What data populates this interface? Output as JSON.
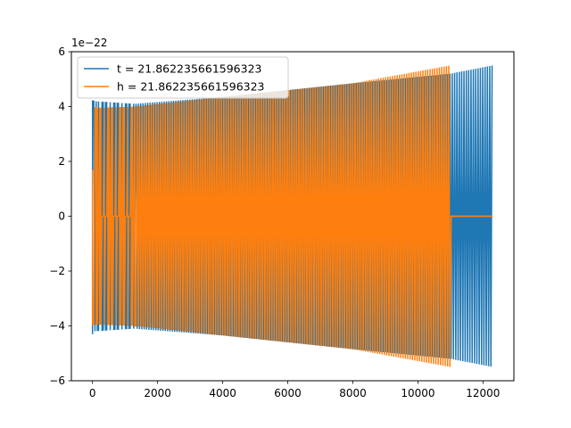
{
  "chart_data": {
    "type": "line",
    "x_ticks": [
      0,
      2000,
      4000,
      6000,
      8000,
      10000,
      12000
    ],
    "y_ticks": [
      -6,
      -4,
      -2,
      0,
      2,
      4,
      6
    ],
    "y_offset_text": "1e−22",
    "xlim": [
      -650,
      12950
    ],
    "ylim": [
      -6,
      6
    ],
    "grid": false,
    "legend_position": "top-left",
    "series": [
      {
        "name": "t = 21.862235661596323",
        "color": "#1f77b4",
        "x_range": [
          0,
          12300
        ],
        "envelope": [
          [
            0,
            4.2
          ],
          [
            1300,
            4.1
          ],
          [
            4000,
            4.35
          ],
          [
            8000,
            4.85
          ],
          [
            11000,
            5.2
          ],
          [
            12300,
            5.5
          ]
        ],
        "quiet_segments": [
          [
            150,
            1300
          ]
        ],
        "initial_spike": [
          0,
          -4.3
        ],
        "note_cycles": 170
      },
      {
        "name": "h = 21.862235661596323",
        "color": "#ff7f0e",
        "x_range": [
          0,
          12300
        ],
        "envelope": [
          [
            0,
            3.95
          ],
          [
            1300,
            4.0
          ],
          [
            4000,
            4.35
          ],
          [
            8000,
            4.85
          ],
          [
            11000,
            5.5
          ]
        ],
        "quiet_segments": [
          [
            100,
            1300
          ],
          [
            11000,
            12300
          ]
        ],
        "initial_spike": [
          0,
          1.7
        ],
        "active_end": 11000
      }
    ]
  }
}
